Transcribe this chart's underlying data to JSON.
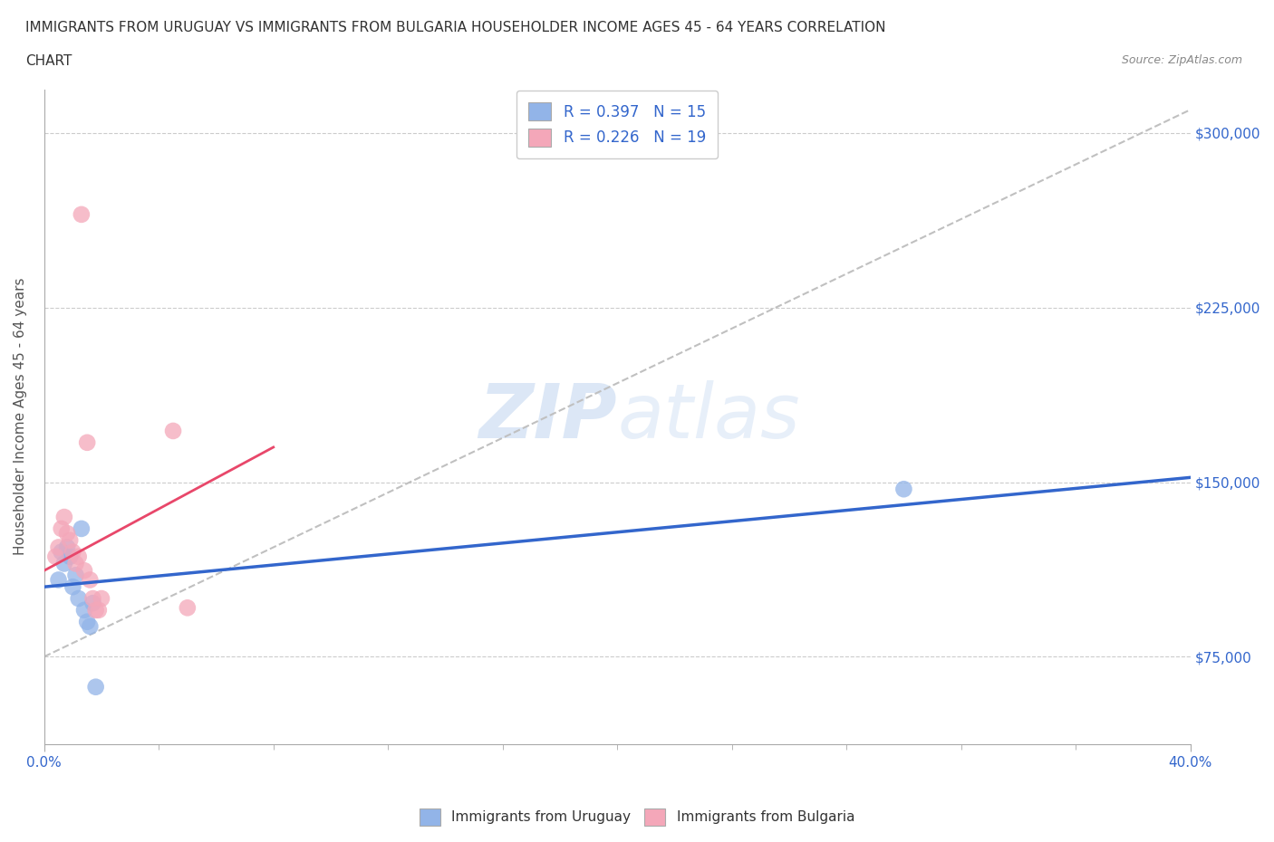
{
  "title_line1": "IMMIGRANTS FROM URUGUAY VS IMMIGRANTS FROM BULGARIA HOUSEHOLDER INCOME AGES 45 - 64 YEARS CORRELATION",
  "title_line2": "CHART",
  "source": "Source: ZipAtlas.com",
  "ylabel": "Householder Income Ages 45 - 64 years",
  "xlim": [
    0.0,
    0.4
  ],
  "ylim": [
    37500,
    318750
  ],
  "yticks": [
    75000,
    150000,
    225000,
    300000
  ],
  "xticks": [
    0.0,
    0.4
  ],
  "xtick_labels": [
    "0.0%",
    "40.0%"
  ],
  "ytick_labels": [
    "$75,000",
    "$150,000",
    "$225,000",
    "$300,000"
  ],
  "uruguay_color": "#92b4e8",
  "bulgaria_color": "#f4a7b9",
  "uruguay_line_color": "#3366cc",
  "bulgaria_line_color": "#e8476a",
  "trend_line_color": "#c0c0c0",
  "R_uruguay": 0.397,
  "N_uruguay": 15,
  "R_bulgaria": 0.226,
  "N_bulgaria": 19,
  "uruguay_x": [
    0.005,
    0.006,
    0.007,
    0.008,
    0.009,
    0.01,
    0.011,
    0.012,
    0.013,
    0.014,
    0.015,
    0.016,
    0.017,
    0.3,
    0.018
  ],
  "uruguay_y": [
    108000,
    120000,
    115000,
    122000,
    118000,
    105000,
    110000,
    100000,
    130000,
    95000,
    90000,
    88000,
    98000,
    147000,
    62000
  ],
  "bulgaria_x": [
    0.004,
    0.005,
    0.006,
    0.007,
    0.008,
    0.009,
    0.01,
    0.011,
    0.012,
    0.013,
    0.014,
    0.015,
    0.016,
    0.045,
    0.017,
    0.018,
    0.019,
    0.05,
    0.02
  ],
  "bulgaria_y": [
    118000,
    122000,
    130000,
    135000,
    128000,
    125000,
    120000,
    115000,
    118000,
    265000,
    112000,
    167000,
    108000,
    172000,
    100000,
    95000,
    95000,
    96000,
    100000
  ],
  "watermark_zip": "ZIP",
  "watermark_atlas": "atlas",
  "background_color": "#ffffff",
  "grid_color": "#cccccc",
  "title_color": "#333333",
  "axis_label_color": "#555555",
  "tick_label_color": "#3366cc",
  "legend_entry1": "R = 0.397   N = 15",
  "legend_entry2": "R = 0.226   N = 19",
  "legend_label1": "Immigrants from Uruguay",
  "legend_label2": "Immigrants from Bulgaria"
}
